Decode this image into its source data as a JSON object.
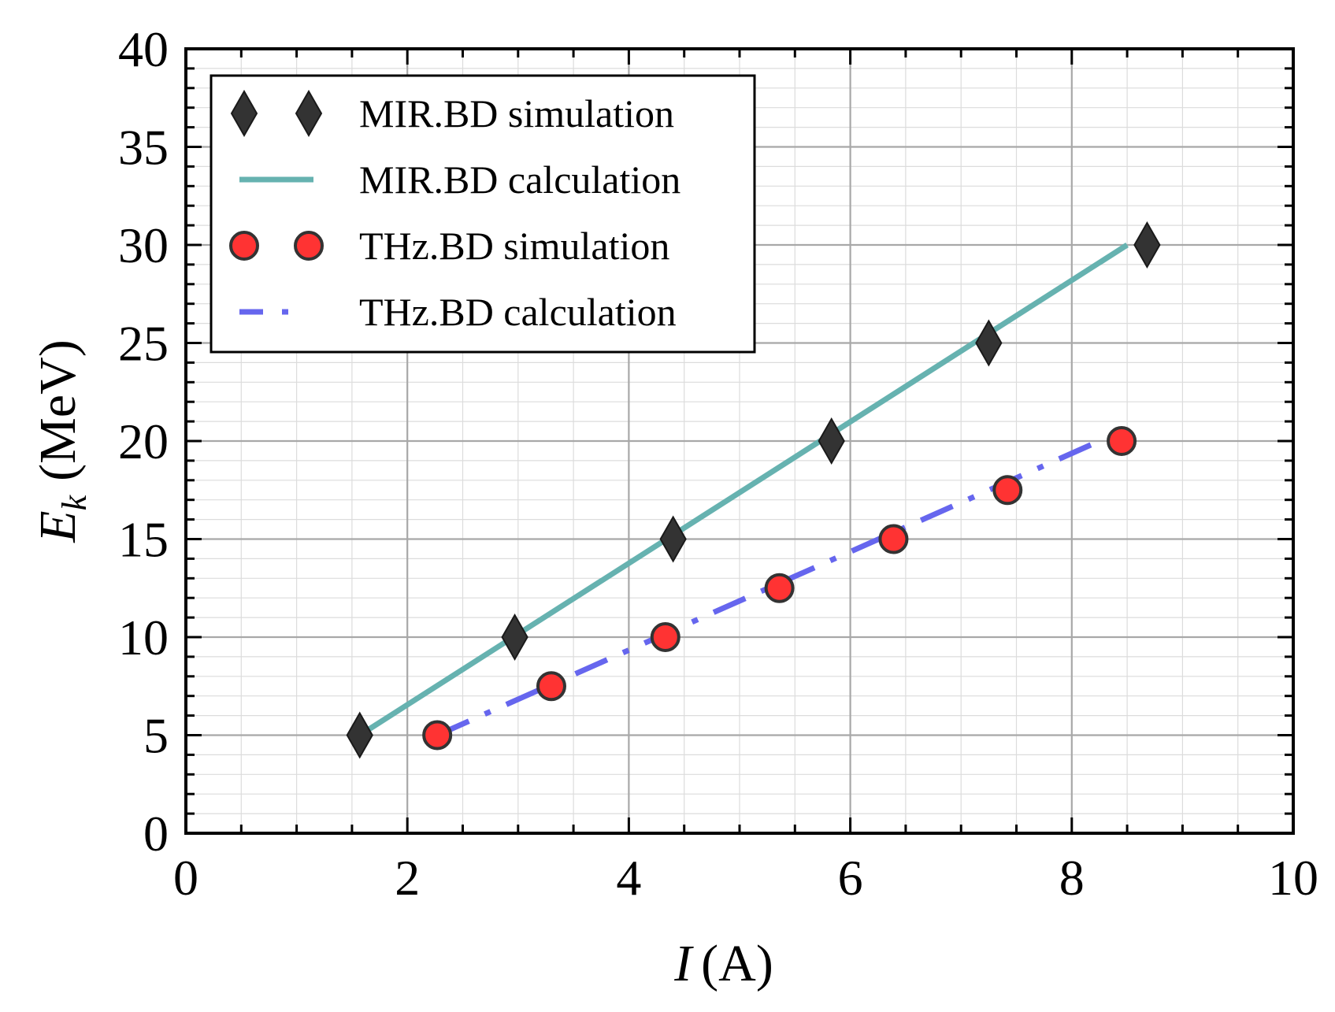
{
  "chart_data": {
    "type": "line",
    "xlabel": {
      "symbol": "I",
      "unit": "(A)"
    },
    "ylabel": {
      "symbol": "E",
      "subscript": "k",
      "unit": "(MeV)"
    },
    "xlim": [
      0,
      10
    ],
    "ylim": [
      0,
      40
    ],
    "x_ticks": [
      "0",
      "2",
      "4",
      "6",
      "8",
      "10"
    ],
    "y_ticks": [
      "0",
      "5",
      "10",
      "15",
      "20",
      "25",
      "30",
      "35",
      "40"
    ],
    "grid": true,
    "legend_position": "top-left",
    "series": [
      {
        "name": "MIR.BD simulation",
        "kind": "scatter",
        "marker": "diamond",
        "color": "#333333",
        "points": [
          [
            1.57,
            5
          ],
          [
            2.97,
            10
          ],
          [
            4.4,
            15
          ],
          [
            5.83,
            20
          ],
          [
            7.25,
            25
          ],
          [
            8.68,
            30
          ]
        ]
      },
      {
        "name": "MIR.BD calculation",
        "kind": "line",
        "style": "solid",
        "color": "#66b2b0",
        "points": [
          [
            1.57,
            5
          ],
          [
            8.5,
            30
          ]
        ]
      },
      {
        "name": "THz.BD simulation",
        "kind": "scatter",
        "marker": "circle",
        "color": "#ff3333",
        "points": [
          [
            2.27,
            5
          ],
          [
            3.3,
            7.5
          ],
          [
            4.33,
            10
          ],
          [
            5.36,
            12.5
          ],
          [
            6.39,
            15
          ],
          [
            7.42,
            17.5
          ],
          [
            8.45,
            20
          ]
        ]
      },
      {
        "name": "THz.BD calculation",
        "kind": "line",
        "style": "dashdot",
        "color": "#6666ee",
        "points": [
          [
            2.27,
            5
          ],
          [
            8.25,
            20
          ]
        ]
      }
    ]
  }
}
